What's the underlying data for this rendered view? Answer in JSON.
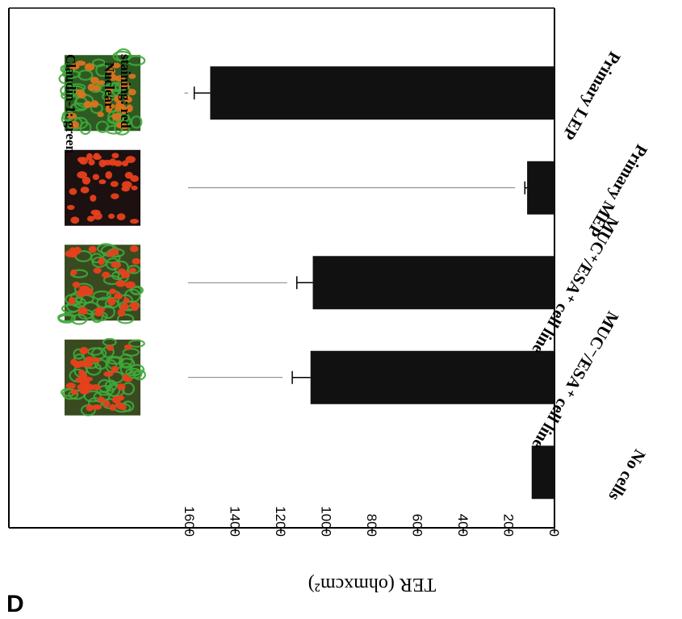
{
  "panel_letter": "D",
  "legend": {
    "line1": "Claudin-1: green",
    "line2": "Nuclear",
    "line3": "staining: red"
  },
  "colors": {
    "bar": "#111111",
    "axis": "#000000",
    "nucleus_red": "#e8401c",
    "claudin_green": "#3fa83a",
    "dark_bg": "#1a0f0a"
  },
  "chart_data": {
    "type": "bar",
    "orientation": "rotated-180",
    "ylabel": "TER (ohmxcm²)",
    "ylim": [
      0,
      1700
    ],
    "yticks": [
      0,
      200,
      400,
      600,
      800,
      1000,
      1200,
      1400,
      1600
    ],
    "categories": [
      "No cells",
      "MUC⁻/ESA⁺ cell line",
      "MUC⁺/ESA⁺ cell line",
      "Primary MEP",
      "Primary LEP"
    ],
    "values": [
      100,
      1070,
      1060,
      120,
      1510
    ],
    "errors": [
      0,
      80,
      70,
      10,
      70
    ],
    "images": [
      "none",
      "mixed",
      "mixed",
      "nuclei-only",
      "dense-green"
    ]
  }
}
